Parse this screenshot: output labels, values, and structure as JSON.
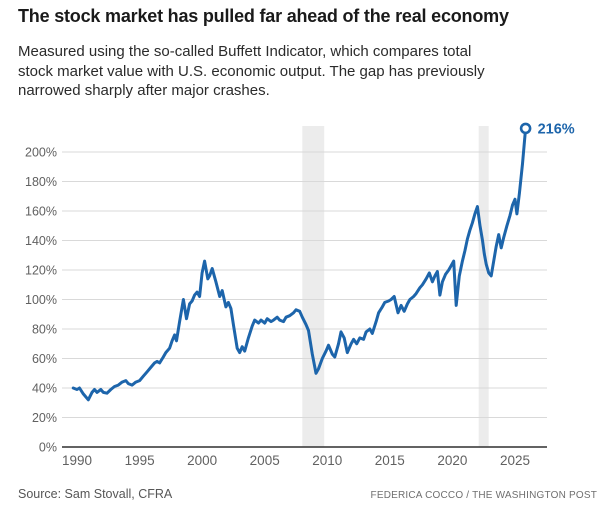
{
  "chart_data": {
    "type": "line",
    "title": "The stock market has pulled far ahead of the real economy",
    "subtitle_lines": [
      "Measured using the so-called Buffett Indicator, which compares total",
      "stock market value with U.S. economic output. The gap has previously",
      "narrowed sharply after major crashes."
    ],
    "series_name": "Buffett Indicator",
    "xlim": [
      1989.5,
      2026.5
    ],
    "ylim": [
      0,
      220
    ],
    "grid": true,
    "x_ticks": [
      {
        "value": 1990,
        "label": "1990"
      },
      {
        "value": 1995,
        "label": "1995"
      },
      {
        "value": 2000,
        "label": "2000"
      },
      {
        "value": 2005,
        "label": "2005"
      },
      {
        "value": 2010,
        "label": "2010"
      },
      {
        "value": 2015,
        "label": "2015"
      },
      {
        "value": 2020,
        "label": "2020"
      },
      {
        "value": 2025,
        "label": "2025"
      }
    ],
    "y_ticks": [
      {
        "value": 0,
        "label": "0%"
      },
      {
        "value": 20,
        "label": "20%"
      },
      {
        "value": 40,
        "label": "40%"
      },
      {
        "value": 60,
        "label": "60%"
      },
      {
        "value": 80,
        "label": "80%"
      },
      {
        "value": 100,
        "label": "100%"
      },
      {
        "value": 120,
        "label": "120%"
      },
      {
        "value": 140,
        "label": "140%"
      },
      {
        "value": 160,
        "label": "160%"
      },
      {
        "value": 180,
        "label": "180%"
      },
      {
        "value": 200,
        "label": "200%"
      }
    ],
    "annotation": {
      "label": "216%",
      "value": 216
    },
    "recession_bands": [
      {
        "from": 2008.0,
        "to": 2009.75
      },
      {
        "from": 2022.1,
        "to": 2022.9
      }
    ],
    "colors": {
      "line": "#1d65ab",
      "band": "#ececec",
      "grid": "#d9d9d9",
      "axis": "#4d4d4d",
      "tick_text": "#616161"
    },
    "points": [
      [
        1989.7,
        40
      ],
      [
        1990.0,
        39
      ],
      [
        1990.2,
        40
      ],
      [
        1990.5,
        36
      ],
      [
        1990.9,
        32
      ],
      [
        1991.2,
        37
      ],
      [
        1991.4,
        39
      ],
      [
        1991.6,
        37
      ],
      [
        1991.9,
        39
      ],
      [
        1992.1,
        37
      ],
      [
        1992.4,
        36.5
      ],
      [
        1992.7,
        39
      ],
      [
        1993.0,
        41
      ],
      [
        1993.3,
        42
      ],
      [
        1993.6,
        44
      ],
      [
        1993.9,
        45
      ],
      [
        1994.1,
        43
      ],
      [
        1994.4,
        42
      ],
      [
        1994.7,
        44
      ],
      [
        1995.0,
        45
      ],
      [
        1995.3,
        48
      ],
      [
        1995.6,
        51
      ],
      [
        1995.9,
        54
      ],
      [
        1996.2,
        57
      ],
      [
        1996.4,
        58
      ],
      [
        1996.6,
        57
      ],
      [
        1996.9,
        61
      ],
      [
        1997.1,
        64
      ],
      [
        1997.4,
        67
      ],
      [
        1997.6,
        72
      ],
      [
        1997.8,
        76
      ],
      [
        1997.95,
        72
      ],
      [
        1998.2,
        85
      ],
      [
        1998.5,
        100
      ],
      [
        1998.75,
        87
      ],
      [
        1999.0,
        97
      ],
      [
        1999.2,
        99
      ],
      [
        1999.4,
        103
      ],
      [
        1999.6,
        105
      ],
      [
        1999.8,
        102
      ],
      [
        2000.0,
        118
      ],
      [
        2000.2,
        126
      ],
      [
        2000.45,
        114
      ],
      [
        2000.6,
        116
      ],
      [
        2000.8,
        121
      ],
      [
        2001.1,
        112
      ],
      [
        2001.4,
        102
      ],
      [
        2001.6,
        106
      ],
      [
        2001.9,
        95
      ],
      [
        2002.1,
        98
      ],
      [
        2002.3,
        94
      ],
      [
        2002.5,
        83
      ],
      [
        2002.8,
        67
      ],
      [
        2003.0,
        64
      ],
      [
        2003.2,
        68
      ],
      [
        2003.4,
        65
      ],
      [
        2003.7,
        74
      ],
      [
        2004.0,
        82
      ],
      [
        2004.2,
        86
      ],
      [
        2004.5,
        84
      ],
      [
        2004.7,
        86
      ],
      [
        2005.0,
        84
      ],
      [
        2005.2,
        87
      ],
      [
        2005.5,
        85
      ],
      [
        2005.7,
        86
      ],
      [
        2006.0,
        88
      ],
      [
        2006.2,
        86
      ],
      [
        2006.5,
        85
      ],
      [
        2006.7,
        88
      ],
      [
        2007.0,
        89
      ],
      [
        2007.3,
        91
      ],
      [
        2007.5,
        93
      ],
      [
        2007.8,
        92
      ],
      [
        2008.0,
        88
      ],
      [
        2008.3,
        83
      ],
      [
        2008.5,
        79
      ],
      [
        2008.8,
        63
      ],
      [
        2009.1,
        50
      ],
      [
        2009.3,
        53
      ],
      [
        2009.6,
        60
      ],
      [
        2009.9,
        65
      ],
      [
        2010.1,
        69
      ],
      [
        2010.4,
        63
      ],
      [
        2010.6,
        61
      ],
      [
        2010.9,
        70
      ],
      [
        2011.1,
        78
      ],
      [
        2011.35,
        74
      ],
      [
        2011.6,
        64
      ],
      [
        2011.9,
        70
      ],
      [
        2012.1,
        73
      ],
      [
        2012.35,
        70
      ],
      [
        2012.6,
        74
      ],
      [
        2012.9,
        73
      ],
      [
        2013.1,
        78
      ],
      [
        2013.4,
        80
      ],
      [
        2013.6,
        77
      ],
      [
        2013.9,
        85
      ],
      [
        2014.1,
        91
      ],
      [
        2014.4,
        95
      ],
      [
        2014.6,
        98
      ],
      [
        2014.9,
        99
      ],
      [
        2015.1,
        100
      ],
      [
        2015.35,
        102
      ],
      [
        2015.65,
        91
      ],
      [
        2015.9,
        96
      ],
      [
        2016.15,
        92
      ],
      [
        2016.4,
        97
      ],
      [
        2016.6,
        100
      ],
      [
        2016.9,
        102
      ],
      [
        2017.1,
        104
      ],
      [
        2017.4,
        108
      ],
      [
        2017.6,
        110
      ],
      [
        2017.9,
        114
      ],
      [
        2018.15,
        118
      ],
      [
        2018.4,
        112
      ],
      [
        2018.6,
        116
      ],
      [
        2018.8,
        119
      ],
      [
        2019.0,
        103
      ],
      [
        2019.2,
        112
      ],
      [
        2019.45,
        117
      ],
      [
        2019.7,
        120
      ],
      [
        2019.9,
        123
      ],
      [
        2020.1,
        126
      ],
      [
        2020.3,
        96
      ],
      [
        2020.55,
        116
      ],
      [
        2020.8,
        126
      ],
      [
        2021.0,
        133
      ],
      [
        2021.2,
        141
      ],
      [
        2021.4,
        147
      ],
      [
        2021.6,
        152
      ],
      [
        2021.8,
        158
      ],
      [
        2022.0,
        163
      ],
      [
        2022.2,
        150
      ],
      [
        2022.4,
        140
      ],
      [
        2022.55,
        131
      ],
      [
        2022.7,
        124
      ],
      [
        2022.9,
        118
      ],
      [
        2023.1,
        116
      ],
      [
        2023.3,
        126
      ],
      [
        2023.5,
        136
      ],
      [
        2023.7,
        144
      ],
      [
        2023.9,
        135
      ],
      [
        2024.1,
        142
      ],
      [
        2024.35,
        150
      ],
      [
        2024.6,
        157
      ],
      [
        2024.8,
        164
      ],
      [
        2025.0,
        168
      ],
      [
        2025.15,
        158
      ],
      [
        2025.35,
        172
      ],
      [
        2025.6,
        192
      ],
      [
        2025.85,
        216
      ]
    ]
  },
  "footer": {
    "source": "Source: Sam Stovall, CFRA",
    "credit": "FEDERICA COCCO / THE WASHINGTON POST"
  }
}
